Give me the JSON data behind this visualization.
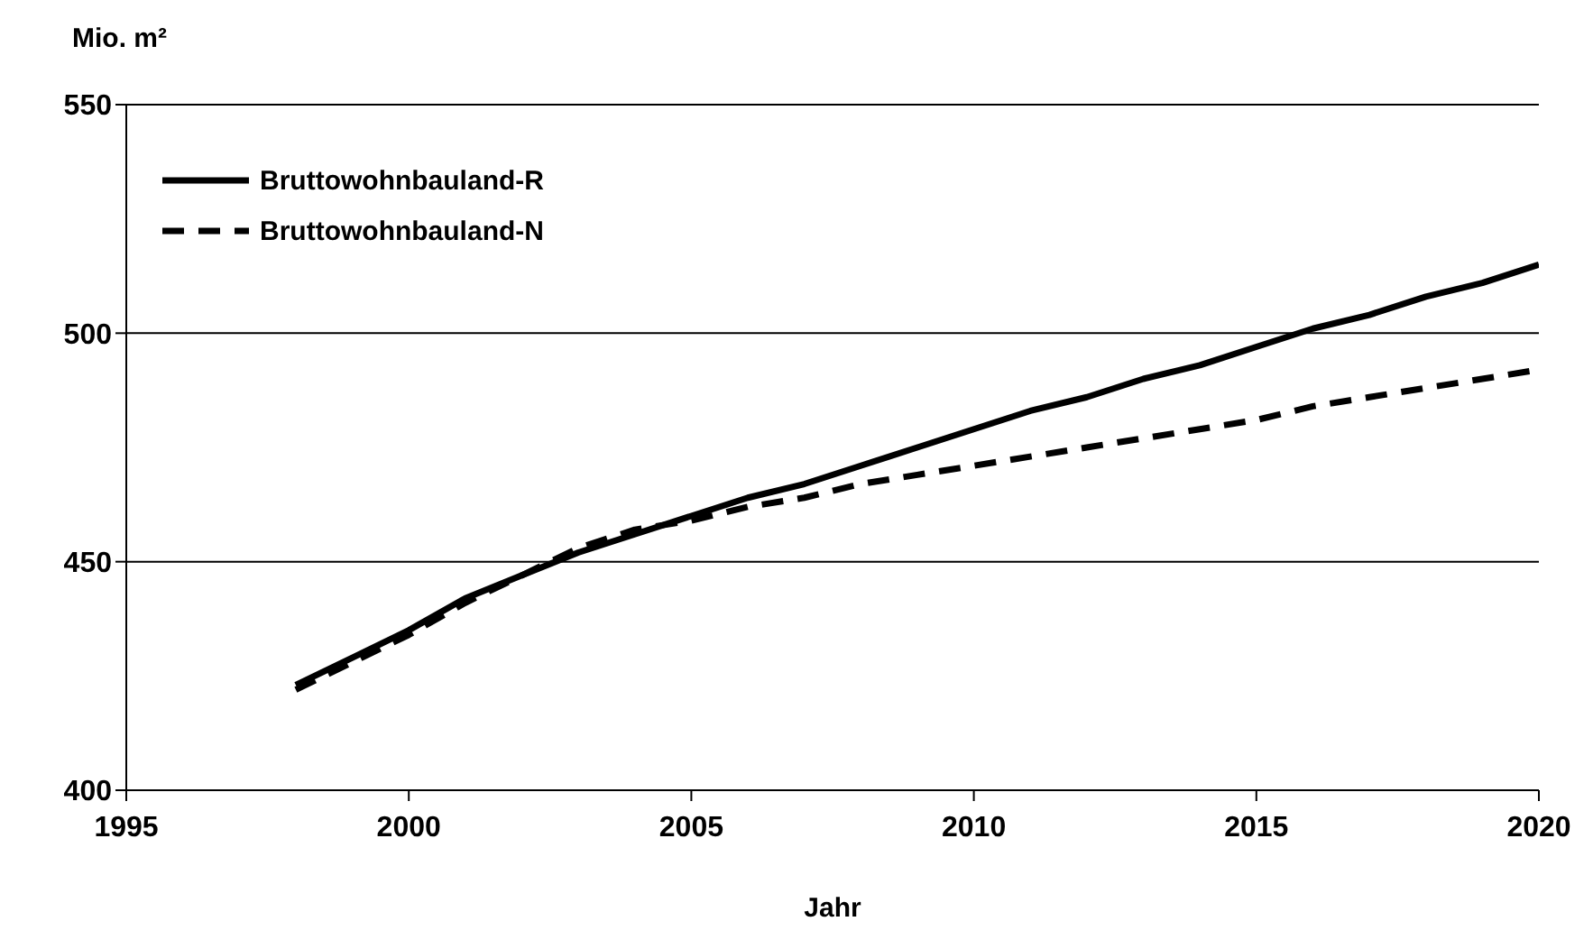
{
  "chart_data": {
    "type": "line",
    "xlabel": "Jahr",
    "ylabel": "Mio. m²",
    "x": [
      1998,
      1999,
      2000,
      2001,
      2002,
      2003,
      2004,
      2005,
      2006,
      2007,
      2008,
      2009,
      2010,
      2011,
      2012,
      2013,
      2014,
      2015,
      2016,
      2017,
      2018,
      2019,
      2020
    ],
    "series": [
      {
        "name": "Bruttowohnbauland-R",
        "color": "#000000",
        "line_style": "solid",
        "values": [
          423,
          429,
          435,
          442,
          447,
          452,
          456,
          460,
          464,
          467,
          471,
          475,
          479,
          483,
          486,
          490,
          493,
          497,
          501,
          504,
          508,
          511,
          515
        ]
      },
      {
        "name": "Bruttowohnbauland-N",
        "color": "#000000",
        "line_style": "dashed",
        "values": [
          422,
          428,
          434,
          441,
          447,
          453,
          457,
          459,
          462,
          464,
          467,
          469,
          471,
          473,
          475,
          477,
          479,
          481,
          484,
          486,
          488,
          490,
          492
        ]
      }
    ],
    "xlim": [
      1995,
      2020
    ],
    "xticks": [
      1995,
      2000,
      2005,
      2010,
      2015,
      2020
    ],
    "ylim": [
      400,
      550
    ],
    "yticks": [
      400,
      450,
      500,
      550
    ],
    "grid": "y",
    "legend": "top left",
    "marker": "none"
  }
}
